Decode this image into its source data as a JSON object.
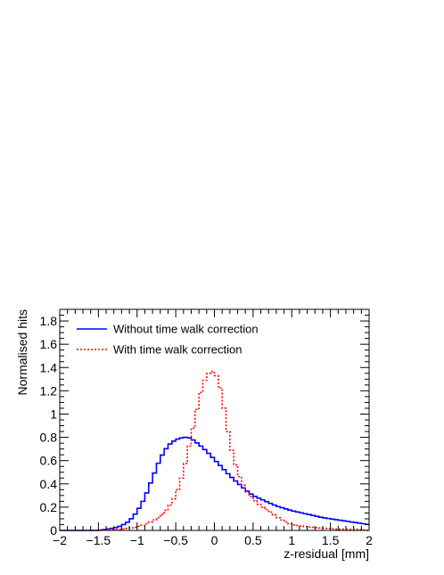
{
  "chart_data": {
    "type": "line",
    "title": "",
    "xlabel": "z-residual [mm]",
    "ylabel": "Normalised hits",
    "xlim": [
      -2,
      2
    ],
    "ylim": [
      0,
      1.9
    ],
    "x_ticks": [
      -2,
      -1.5,
      -1,
      -0.5,
      0,
      0.5,
      1,
      1.5,
      2
    ],
    "x_tick_labels": [
      "−2",
      "−1.5",
      "−1",
      "−0.5",
      "0",
      "0.5",
      "1",
      "1.5",
      "2"
    ],
    "y_ticks": [
      0,
      0.2,
      0.4,
      0.6,
      0.8,
      1,
      1.2,
      1.4,
      1.6,
      1.8
    ],
    "y_tick_labels": [
      "0",
      "0.2",
      "0.4",
      "0.6",
      "0.8",
      "1",
      "1.2",
      "1.4",
      "1.6",
      "1.8"
    ],
    "grid": false,
    "legend_position": "top-left",
    "bin_width": 0.05,
    "series": [
      {
        "name": "Without time walk correction",
        "color": "#0000ff",
        "style": "solid",
        "x": [
          -2.0,
          -1.5,
          -1.4,
          -1.3,
          -1.2,
          -1.1,
          -1.0,
          -0.9,
          -0.8,
          -0.7,
          -0.6,
          -0.5,
          -0.4,
          -0.35,
          -0.3,
          -0.2,
          -0.1,
          0.0,
          0.1,
          0.2,
          0.3,
          0.4,
          0.5,
          0.6,
          0.7,
          0.8,
          0.9,
          1.0,
          1.2,
          1.4,
          1.6,
          1.8,
          2.0
        ],
        "y": [
          0.0,
          0.0,
          0.01,
          0.02,
          0.04,
          0.08,
          0.16,
          0.28,
          0.45,
          0.62,
          0.73,
          0.78,
          0.8,
          0.8,
          0.79,
          0.74,
          0.68,
          0.61,
          0.54,
          0.47,
          0.41,
          0.35,
          0.3,
          0.27,
          0.24,
          0.21,
          0.19,
          0.17,
          0.14,
          0.11,
          0.09,
          0.07,
          0.05
        ]
      },
      {
        "name": "With time walk correction",
        "color": "#ff0000",
        "style": "dotted",
        "x": [
          -2.0,
          -1.5,
          -1.3,
          -1.2,
          -1.1,
          -1.0,
          -0.9,
          -0.8,
          -0.7,
          -0.6,
          -0.5,
          -0.4,
          -0.3,
          -0.2,
          -0.15,
          -0.1,
          -0.05,
          0.0,
          0.05,
          0.1,
          0.15,
          0.2,
          0.3,
          0.4,
          0.5,
          0.6,
          0.7,
          0.8,
          0.9,
          1.0,
          1.2,
          1.4,
          1.6,
          1.8,
          2.0
        ],
        "y": [
          0.0,
          0.0,
          0.01,
          0.01,
          0.02,
          0.03,
          0.05,
          0.08,
          0.12,
          0.19,
          0.3,
          0.5,
          0.8,
          1.12,
          1.25,
          1.33,
          1.37,
          1.36,
          1.3,
          1.15,
          0.95,
          0.75,
          0.5,
          0.35,
          0.27,
          0.21,
          0.17,
          0.12,
          0.08,
          0.05,
          0.03,
          0.02,
          0.01,
          0.01,
          0.0
        ]
      }
    ]
  }
}
